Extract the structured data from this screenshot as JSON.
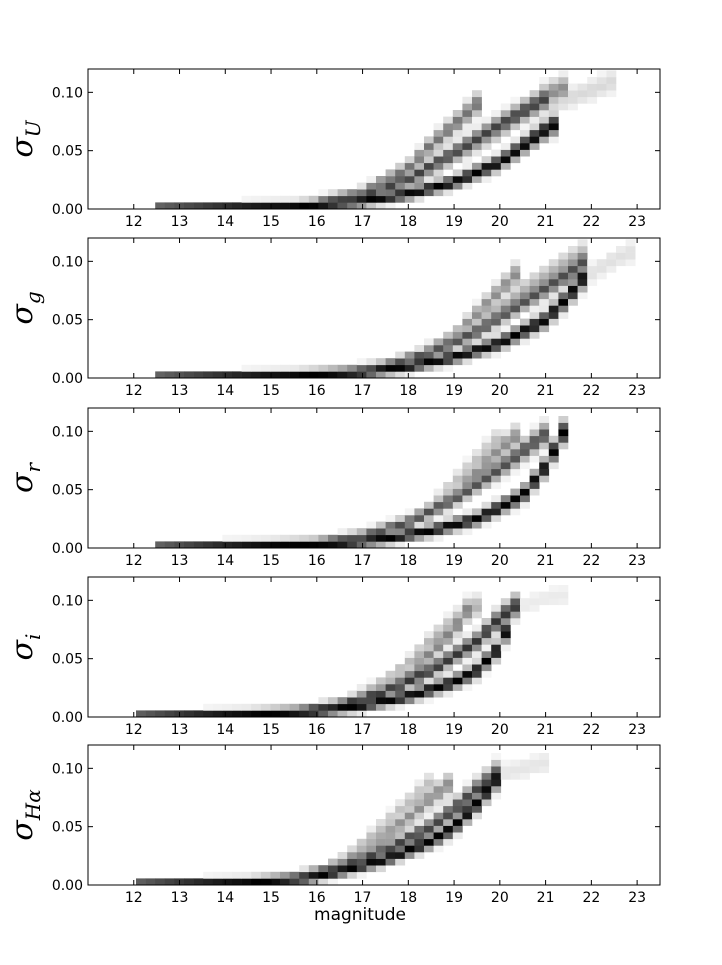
{
  "chart_data": [
    {
      "type": "heatmap",
      "ylabel_symbol": "σ",
      "ylabel_subscript": "U",
      "xlim": [
        11.0,
        23.5
      ],
      "ylim": [
        0.0,
        0.12
      ],
      "xticks": [
        12,
        13,
        14,
        15,
        16,
        17,
        18,
        19,
        20,
        21,
        22,
        23
      ],
      "xtick_labels": [
        "12",
        "13",
        "14",
        "15",
        "16",
        "17",
        "18",
        "19",
        "20",
        "21",
        "22",
        "23"
      ],
      "yticks": [
        0.0,
        0.05,
        0.1
      ],
      "ytick_labels": [
        "0.00",
        "0.05",
        "0.10"
      ],
      "xlabel": "",
      "colormap": "gray_r",
      "bands": [
        {
          "x": [
            12.5,
            15.5,
            17.0,
            18.0,
            19.0,
            20.0,
            21.0,
            21.3
          ],
          "y": [
            0.0,
            0.002,
            0.007,
            0.013,
            0.023,
            0.04,
            0.068,
            0.075
          ],
          "density": 1.0
        },
        {
          "x": [
            16.0,
            17.0,
            18.0,
            19.0,
            19.5,
            20.0,
            21.0
          ],
          "y": [
            0.005,
            0.011,
            0.026,
            0.048,
            0.06,
            0.072,
            0.095
          ],
          "density": 0.75
        },
        {
          "x": [
            16.0,
            17.0,
            18.0,
            18.5,
            19.0,
            19.5
          ],
          "y": [
            0.006,
            0.014,
            0.035,
            0.055,
            0.072,
            0.09
          ],
          "density": 0.55
        },
        {
          "x": [
            17.0,
            18.0,
            19.0,
            20.0,
            20.5,
            21.0,
            21.5
          ],
          "y": [
            0.01,
            0.022,
            0.045,
            0.068,
            0.082,
            0.098,
            0.105
          ],
          "density": 0.45
        },
        {
          "x": [
            21.0,
            21.5,
            22.0,
            22.5
          ],
          "y": [
            0.085,
            0.095,
            0.102,
            0.11
          ],
          "density": 0.15
        }
      ]
    },
    {
      "type": "heatmap",
      "ylabel_symbol": "σ",
      "ylabel_subscript": "g",
      "xlim": [
        11.0,
        23.5
      ],
      "ylim": [
        0.0,
        0.12
      ],
      "xticks": [
        12,
        13,
        14,
        15,
        16,
        17,
        18,
        19,
        20,
        21,
        22,
        23
      ],
      "xtick_labels": [
        "12",
        "13",
        "14",
        "15",
        "16",
        "17",
        "18",
        "19",
        "20",
        "21",
        "22",
        "23"
      ],
      "yticks": [
        0.0,
        0.05,
        0.1
      ],
      "ytick_labels": [
        "0.00",
        "0.05",
        "0.10"
      ],
      "xlabel": "",
      "colormap": "gray_r",
      "bands": [
        {
          "x": [
            12.5,
            15.5,
            17.0,
            18.0,
            19.0,
            20.0,
            21.0,
            21.5,
            22.0
          ],
          "y": [
            0.0,
            0.002,
            0.005,
            0.01,
            0.018,
            0.03,
            0.05,
            0.07,
            0.095
          ],
          "density": 1.0
        },
        {
          "x": [
            16.5,
            17.5,
            18.5,
            19.5,
            20.5,
            21.5,
            22.0
          ],
          "y": [
            0.004,
            0.01,
            0.022,
            0.04,
            0.065,
            0.09,
            0.105
          ],
          "density": 0.7
        },
        {
          "x": [
            17.0,
            18.0,
            19.0,
            19.5,
            20.0,
            20.5
          ],
          "y": [
            0.006,
            0.015,
            0.035,
            0.055,
            0.075,
            0.095
          ],
          "density": 0.45
        },
        {
          "x": [
            17.5,
            18.5,
            19.5,
            20.5,
            21.5,
            22.0
          ],
          "y": [
            0.008,
            0.02,
            0.045,
            0.075,
            0.1,
            0.11
          ],
          "density": 0.3
        },
        {
          "x": [
            22.0,
            22.5,
            23.0
          ],
          "y": [
            0.09,
            0.102,
            0.11
          ],
          "density": 0.12
        }
      ]
    },
    {
      "type": "heatmap",
      "ylabel_symbol": "σ",
      "ylabel_subscript": "r",
      "xlim": [
        11.0,
        23.5
      ],
      "ylim": [
        0.0,
        0.12
      ],
      "xticks": [
        12,
        13,
        14,
        15,
        16,
        17,
        18,
        19,
        20,
        21,
        22,
        23
      ],
      "xtick_labels": [
        "12",
        "13",
        "14",
        "15",
        "16",
        "17",
        "18",
        "19",
        "20",
        "21",
        "22",
        "23"
      ],
      "yticks": [
        0.0,
        0.05,
        0.1
      ],
      "ytick_labels": [
        "0.00",
        "0.05",
        "0.10"
      ],
      "xlabel": "",
      "colormap": "gray_r",
      "bands": [
        {
          "x": [
            12.5,
            15.0,
            16.5,
            17.5,
            18.5,
            19.5,
            20.5,
            21.0,
            21.4
          ],
          "y": [
            0.0,
            0.002,
            0.004,
            0.008,
            0.015,
            0.025,
            0.045,
            0.07,
            0.1
          ],
          "density": 1.0
        },
        {
          "x": [
            16.0,
            17.0,
            18.0,
            19.0,
            20.0,
            21.0
          ],
          "y": [
            0.004,
            0.01,
            0.022,
            0.042,
            0.068,
            0.098
          ],
          "density": 0.7
        },
        {
          "x": [
            17.0,
            18.0,
            19.0,
            19.5,
            20.0,
            20.5
          ],
          "y": [
            0.008,
            0.02,
            0.045,
            0.065,
            0.085,
            0.1
          ],
          "density": 0.45
        },
        {
          "x": [
            17.5,
            18.5,
            19.0,
            19.5,
            20.0
          ],
          "y": [
            0.012,
            0.035,
            0.055,
            0.075,
            0.095
          ],
          "density": 0.25
        }
      ]
    },
    {
      "type": "heatmap",
      "ylabel_symbol": "σ",
      "ylabel_subscript": "i",
      "xlim": [
        11.0,
        23.5
      ],
      "ylim": [
        0.0,
        0.12
      ],
      "xticks": [
        12,
        13,
        14,
        15,
        16,
        17,
        18,
        19,
        20,
        21,
        22,
        23
      ],
      "xtick_labels": [
        "12",
        "13",
        "14",
        "15",
        "16",
        "17",
        "18",
        "19",
        "20",
        "21",
        "22",
        "23"
      ],
      "yticks": [
        0.0,
        0.05,
        0.1
      ],
      "ytick_labels": [
        "0.00",
        "0.05",
        "0.10"
      ],
      "xlabel": "",
      "colormap": "gray_r",
      "bands": [
        {
          "x": [
            12.0,
            14.5,
            16.0,
            17.0,
            18.0,
            19.0,
            19.5,
            20.0,
            20.3
          ],
          "y": [
            0.0,
            0.002,
            0.005,
            0.01,
            0.018,
            0.03,
            0.04,
            0.06,
            0.09
          ],
          "density": 1.0
        },
        {
          "x": [
            15.5,
            16.5,
            17.5,
            18.5,
            19.5,
            20.0,
            20.5
          ],
          "y": [
            0.004,
            0.01,
            0.022,
            0.04,
            0.065,
            0.085,
            0.1
          ],
          "density": 0.8
        },
        {
          "x": [
            16.0,
            17.0,
            18.0,
            18.5,
            19.0,
            19.3
          ],
          "y": [
            0.006,
            0.015,
            0.035,
            0.055,
            0.075,
            0.092
          ],
          "density": 0.5
        },
        {
          "x": [
            16.5,
            17.5,
            18.0,
            18.5,
            19.0,
            19.5
          ],
          "y": [
            0.01,
            0.03,
            0.045,
            0.065,
            0.082,
            0.095
          ],
          "density": 0.3
        },
        {
          "x": [
            20.5,
            21.0,
            21.5
          ],
          "y": [
            0.095,
            0.102,
            0.105
          ],
          "density": 0.08
        }
      ]
    },
    {
      "type": "heatmap",
      "ylabel_symbol": "σ",
      "ylabel_subscript": "Hα",
      "xlim": [
        11.0,
        23.5
      ],
      "ylim": [
        0.0,
        0.12
      ],
      "xticks": [
        12,
        13,
        14,
        15,
        16,
        17,
        18,
        19,
        20,
        21,
        22,
        23
      ],
      "xtick_labels": [
        "12",
        "13",
        "14",
        "15",
        "16",
        "17",
        "18",
        "19",
        "20",
        "21",
        "22",
        "23"
      ],
      "yticks": [
        0.0,
        0.05,
        0.1
      ],
      "ytick_labels": [
        "0.00",
        "0.05",
        "0.10"
      ],
      "xlabel": "magnitude",
      "colormap": "gray_r",
      "bands": [
        {
          "x": [
            12.0,
            14.5,
            15.8,
            16.5,
            17.5,
            18.5,
            19.0,
            19.5,
            20.0
          ],
          "y": [
            0.0,
            0.002,
            0.006,
            0.012,
            0.022,
            0.038,
            0.05,
            0.07,
            0.095
          ],
          "density": 1.0
        },
        {
          "x": [
            15.5,
            16.5,
            17.5,
            18.5,
            19.0,
            19.5,
            20.0
          ],
          "y": [
            0.006,
            0.015,
            0.03,
            0.05,
            0.065,
            0.082,
            0.098
          ],
          "density": 0.75
        },
        {
          "x": [
            16.0,
            17.0,
            17.5,
            18.0,
            18.5,
            19.0
          ],
          "y": [
            0.01,
            0.028,
            0.042,
            0.058,
            0.075,
            0.09
          ],
          "density": 0.45
        },
        {
          "x": [
            16.5,
            17.0,
            17.5,
            18.0,
            18.5
          ],
          "y": [
            0.018,
            0.035,
            0.052,
            0.07,
            0.088
          ],
          "density": 0.25
        },
        {
          "x": [
            20.0,
            20.5,
            21.0
          ],
          "y": [
            0.095,
            0.1,
            0.105
          ],
          "density": 0.1
        }
      ]
    }
  ]
}
